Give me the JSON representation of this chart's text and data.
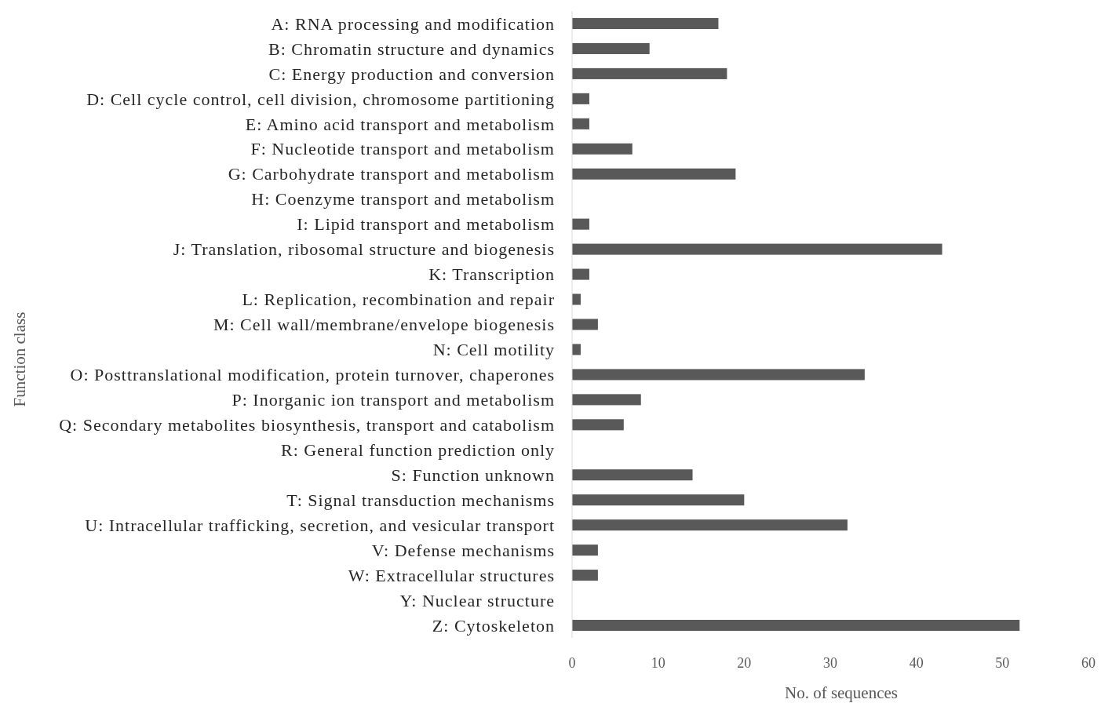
{
  "chart_data": {
    "type": "bar",
    "orientation": "horizontal",
    "xlabel": "No. of sequences",
    "ylabel": "Function class",
    "categories": [
      "A: RNA processing and modification",
      "B: Chromatin structure and dynamics",
      "C: Energy production and conversion",
      "D: Cell cycle control, cell division, chromosome partitioning",
      "E: Amino acid transport and metabolism",
      "F: Nucleotide transport and metabolism",
      "G: Carbohydrate transport and metabolism",
      "H: Coenzyme transport and metabolism",
      "I: Lipid transport and metabolism",
      "J: Translation, ribosomal structure and biogenesis",
      "K: Transcription",
      "L: Replication, recombination and repair",
      "M: Cell wall/membrane/envelope biogenesis",
      "N: Cell motility",
      "O: Posttranslational modification, protein turnover, chaperones",
      "P: Inorganic ion transport and metabolism",
      "Q: Secondary metabolites biosynthesis, transport and catabolism",
      "R: General function prediction only",
      "S: Function unknown",
      "T: Signal transduction mechanisms",
      "U: Intracellular trafficking, secretion, and vesicular transport",
      "V: Defense mechanisms",
      "W: Extracellular structures",
      "Y: Nuclear structure",
      "Z: Cytoskeleton"
    ],
    "values": [
      17,
      9,
      18,
      2,
      2,
      7,
      19,
      0,
      2,
      43,
      2,
      1,
      3,
      1,
      34,
      8,
      6,
      0,
      14,
      20,
      32,
      3,
      3,
      0,
      52
    ],
    "color": "#595959",
    "xlim": [
      0,
      60
    ],
    "xticks": [
      0,
      10,
      20,
      30,
      40,
      50,
      60
    ],
    "grid": false
  }
}
